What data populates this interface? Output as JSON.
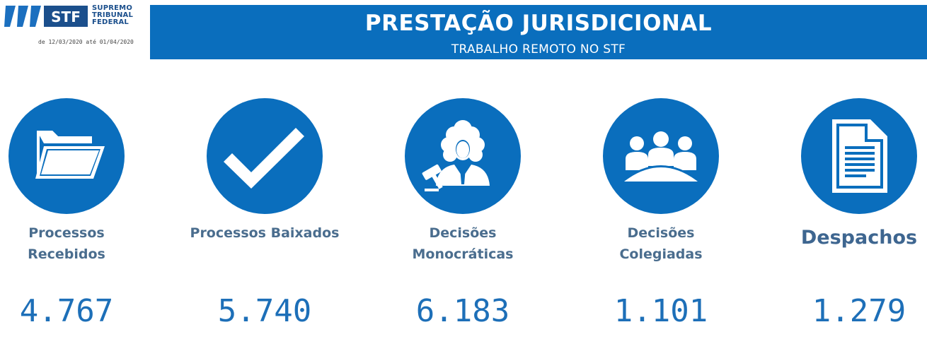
{
  "header": {
    "logo": {
      "abbr": "STF",
      "line1": "SUPREMO",
      "line2": "TRIBUNAL",
      "line3": "FEDERAL"
    },
    "date_range": "de 12/03/2020 até 01/04/2020",
    "title": "PRESTAÇÃO JURISDICIONAL",
    "subtitle": "TRABALHO REMOTO NO STF"
  },
  "stats": [
    {
      "icon": "folder-icon",
      "label_line1": "Processos",
      "label_line2": "Recebidos",
      "value": "4.767"
    },
    {
      "icon": "checkmark-icon",
      "label_line1": "Processos Baixados",
      "label_line2": "",
      "value": "5.740"
    },
    {
      "icon": "judge-gavel-icon",
      "label_line1": "Decisões",
      "label_line2": "Monocráticas",
      "value": "6.183"
    },
    {
      "icon": "group-meeting-icon",
      "label_line1": "Decisões",
      "label_line2": "Colegiadas",
      "value": "1.101"
    },
    {
      "icon": "document-icon",
      "label_line1": "Despachos",
      "label_line2": "",
      "value": "1.279"
    }
  ],
  "colors": {
    "brand_blue": "#0a6ebd",
    "label_gray_blue": "#4a6d8e",
    "value_blue": "#1d6fb8"
  }
}
